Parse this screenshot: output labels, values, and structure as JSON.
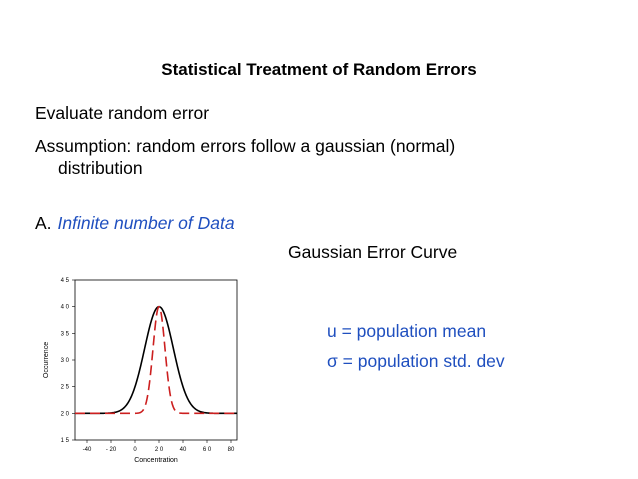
{
  "slide": {
    "title": "Statistical Treatment of Random Errors",
    "line1": "Evaluate random error",
    "line2": "Assumption:  random errors follow a gaussian (normal)",
    "line3": "distribution",
    "section_letter": "A.",
    "section_title": "Infinite number of Data",
    "curve_title": "Gaussian Error Curve",
    "def1": "u = population mean",
    "def2": "σ = population std. dev"
  },
  "colors": {
    "accent_text": "#1f4fbf",
    "solid_curve": "#000000",
    "dashed_curve": "#cc1f1f"
  },
  "chart_data": {
    "type": "line",
    "xlabel": "Concentration",
    "ylabel": "Occurrence",
    "xlim": [
      -50,
      85
    ],
    "ylim": [
      15,
      45
    ],
    "xticks": [
      -40,
      -20,
      0,
      20,
      40,
      60,
      80
    ],
    "xtick_labels": [
      "-40",
      "- 20",
      "0",
      "2 0",
      "40",
      "6 0",
      "80"
    ],
    "yticks": [
      15,
      20,
      25,
      30,
      35,
      40,
      45
    ],
    "ytick_labels": [
      "1 5",
      "2 0",
      "2 5",
      "3 0",
      "3 5",
      "4 0",
      "4 5"
    ],
    "grid": false,
    "series": [
      {
        "style": "solid",
        "mean": 20,
        "sd": 12,
        "baseline": 20,
        "peak": 40
      },
      {
        "style": "dashed",
        "mean": 20,
        "sd": 5,
        "baseline": 20,
        "peak": 40
      }
    ]
  }
}
